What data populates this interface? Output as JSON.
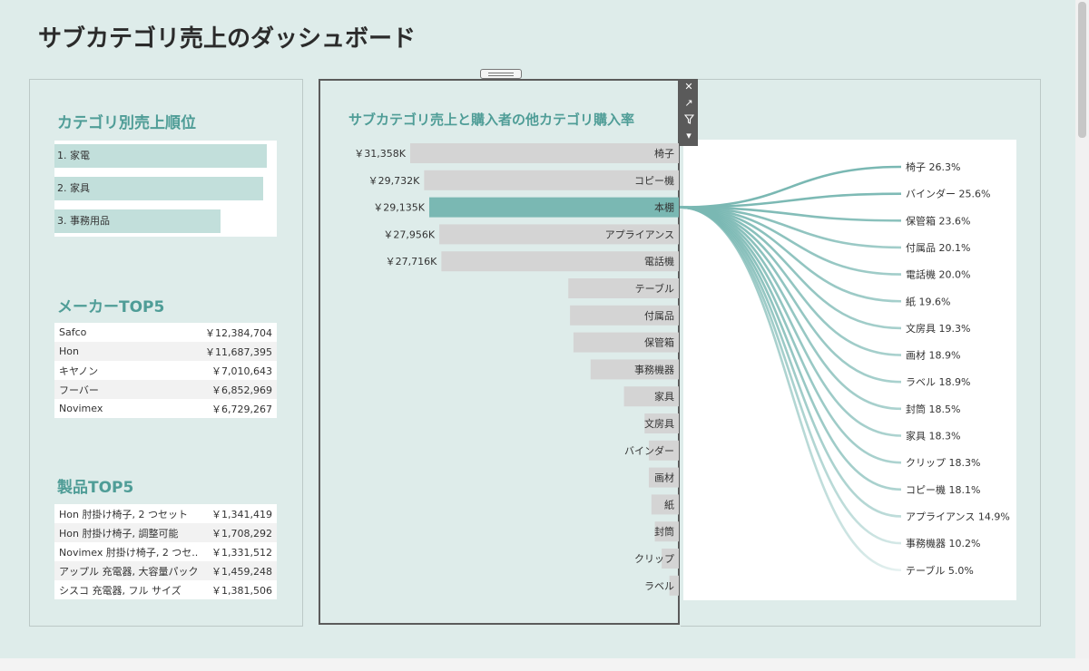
{
  "dashboard_title": "サブカテゴリ売上のダッシュボード",
  "category_rank": {
    "title": "カテゴリ別売上順位",
    "items": [
      {
        "label": "1. 家電",
        "share": 1.0
      },
      {
        "label": "2. 家具",
        "share": 0.985
      },
      {
        "label": "3. 事務用品",
        "share": 0.78
      }
    ]
  },
  "maker_top5": {
    "title": "メーカーTOP5",
    "rows": [
      {
        "name": "Safco",
        "value": "￥12,384,704"
      },
      {
        "name": "Hon",
        "value": "￥11,687,395"
      },
      {
        "name": "キヤノン",
        "value": "￥7,010,643"
      },
      {
        "name": "フーバー",
        "value": "￥6,852,969"
      },
      {
        "name": "Novimex",
        "value": "￥6,729,267"
      }
    ]
  },
  "product_top5": {
    "title": "製品TOP5",
    "rows": [
      {
        "name": "Hon 肘掛け椅子, 2 つセット",
        "value": "￥1,341,419"
      },
      {
        "name": "Hon 肘掛け椅子, 調整可能",
        "value": "￥1,708,292"
      },
      {
        "name": "Novimex 肘掛け椅子, 2 つセ..",
        "value": "￥1,331,512"
      },
      {
        "name": "アップル 充電器, 大容量パック",
        "value": "￥1,459,248"
      },
      {
        "name": "シスコ 充電器, フル サイズ",
        "value": "￥1,381,506"
      }
    ]
  },
  "main_chart_title": "サブカテゴリ売上と購入者の他カテゴリ購入率",
  "toolbar": {
    "close_icon": "✕",
    "open_icon": "↗",
    "filter_icon": "filter",
    "more_icon": "▾"
  },
  "colors": {
    "accent": "#7ab8b3",
    "bar": "#d4d4d4",
    "title": "#4f9d97",
    "background": "#deecea"
  },
  "chart_data": [
    {
      "type": "bar",
      "orientation": "horizontal",
      "title": "サブカテゴリ売上と購入者の他カテゴリ購入率",
      "categories": [
        "椅子",
        "コピー機",
        "本棚",
        "アプライアンス",
        "電話機",
        "テーブル",
        "付属品",
        "保管箱",
        "事務機器",
        "家具",
        "文房具",
        "バインダー",
        "画材",
        "紙",
        "封筒",
        "クリップ",
        "ラベル"
      ],
      "values": [
        31358,
        29732,
        29135,
        27956,
        27716,
        12900,
        12700,
        12300,
        10300,
        6400,
        4000,
        3500,
        3500,
        3200,
        2800,
        2000,
        1100
      ],
      "value_labels": [
        "￥31,358K",
        "￥29,732K",
        "￥29,135K",
        "￥27,956K",
        "￥27,716K",
        "",
        "",
        "",
        "",
        "",
        "",
        "",
        "",
        "",
        "",
        "",
        ""
      ],
      "unit": "K yen",
      "highlighted": "本棚",
      "grid": false
    },
    {
      "type": "sankey",
      "source": "本棚",
      "targets": [
        "椅子",
        "バインダー",
        "保管箱",
        "付属品",
        "電話機",
        "紙",
        "文房具",
        "画材",
        "ラベル",
        "封筒",
        "家具",
        "クリップ",
        "コピー機",
        "アプライアンス",
        "事務機器",
        "テーブル"
      ],
      "values": [
        26.3,
        25.6,
        23.6,
        20.1,
        20.0,
        19.6,
        19.3,
        18.9,
        18.9,
        18.5,
        18.3,
        18.3,
        18.1,
        14.9,
        10.2,
        5.0
      ],
      "value_labels": [
        "26.3%",
        "25.6%",
        "23.6%",
        "20.1%",
        "20.0%",
        "19.6%",
        "19.3%",
        "18.9%",
        "18.9%",
        "18.5%",
        "18.3%",
        "18.3%",
        "18.1%",
        "14.9%",
        "10.2%",
        "5.0%"
      ]
    }
  ]
}
